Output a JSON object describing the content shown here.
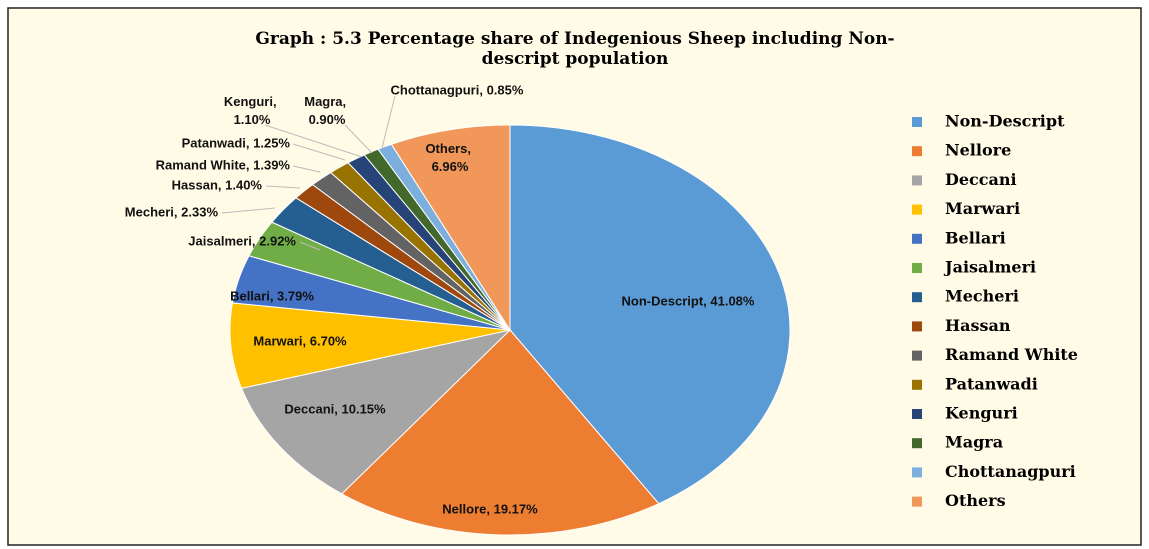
{
  "chart_data": {
    "type": "pie",
    "title": "Graph : 5.3 Percentage share of Indegenious Sheep including Non-descript population",
    "categories": [
      "Non-Descript",
      "Nellore",
      "Deccani",
      "Marwari",
      "Bellari",
      "Jaisalmeri",
      "Mecheri",
      "Hassan",
      "Ramand White",
      "Patanwadi",
      "Kenguri",
      "Magra",
      "Chottanagpuri",
      "Others"
    ],
    "values": [
      41.08,
      19.17,
      10.15,
      6.7,
      3.79,
      2.92,
      2.33,
      1.4,
      1.39,
      1.25,
      1.1,
      0.9,
      0.85,
      6.96
    ],
    "value_labels": [
      "Non-Descript, 41.08%",
      "Nellore, 19.17%",
      "Deccani, 10.15%",
      "Marwari, 6.70%",
      "Bellari, 3.79%",
      "Jaisalmeri, 2.92%",
      "Mecheri, 2.33%",
      "Hassan, 1.40%",
      "Ramand White, 1.39%",
      "Patanwadi, 1.25%",
      "Kenguri, 1.10%",
      "Magra, 0.90%",
      "Chottanagpuri, 0.85%",
      "Others, 6.96%"
    ],
    "colors": [
      "#5b9bd5",
      "#ed7d31",
      "#a5a5a5",
      "#ffc000",
      "#4472c4",
      "#70ad47",
      "#255e91",
      "#9e480e",
      "#636363",
      "#997300",
      "#264478",
      "#43682b",
      "#7cafdd",
      "#f1975a"
    ],
    "legend": "right"
  }
}
